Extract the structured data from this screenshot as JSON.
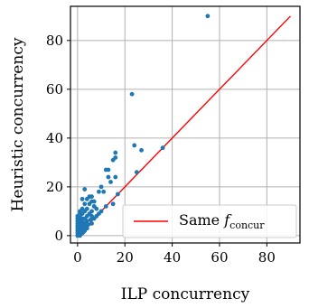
{
  "chart_data": {
    "type": "scatter",
    "xlabel": "ILP concurrency",
    "ylabel": "Heuristic concurrency",
    "xlim": [
      -3,
      94
    ],
    "ylim": [
      -3,
      94
    ],
    "xticks": [
      0,
      20,
      40,
      60,
      80
    ],
    "yticks": [
      0,
      20,
      40,
      60,
      80
    ],
    "grid": true,
    "legend": {
      "placement": "lower-right",
      "entries": [
        {
          "text": "Same ",
          "math": "f",
          "subscript": "concur"
        }
      ]
    },
    "colors": {
      "points": "#1f77b4",
      "reference_line": "#ff0000",
      "grid": "#b0b0b0"
    },
    "series": [
      {
        "kind": "scatter",
        "points": [
          [
            55,
            90
          ],
          [
            23,
            58
          ],
          [
            16,
            34
          ],
          [
            16,
            32
          ],
          [
            24,
            37
          ],
          [
            27,
            35
          ],
          [
            15,
            31
          ],
          [
            36,
            36
          ],
          [
            12,
            27
          ],
          [
            13,
            27
          ],
          [
            25,
            26
          ],
          [
            13,
            24
          ],
          [
            16,
            24
          ],
          [
            14,
            22
          ],
          [
            10,
            20
          ],
          [
            11,
            18
          ],
          [
            9,
            18
          ],
          [
            3,
            19
          ],
          [
            5,
            16
          ],
          [
            6,
            16
          ],
          [
            4,
            15
          ],
          [
            7,
            14
          ],
          [
            5,
            13
          ],
          [
            7,
            12
          ],
          [
            3,
            13
          ],
          [
            8,
            11
          ],
          [
            4,
            11
          ],
          [
            2,
            11
          ],
          [
            6,
            10
          ],
          [
            3,
            10
          ],
          [
            1,
            10
          ],
          [
            2,
            9
          ],
          [
            1,
            9
          ],
          [
            5,
            9
          ],
          [
            4,
            8
          ],
          [
            1,
            8
          ],
          [
            0,
            8
          ],
          [
            6,
            8
          ],
          [
            2,
            7
          ],
          [
            1,
            7
          ],
          [
            0,
            7
          ],
          [
            3,
            7
          ],
          [
            4,
            6
          ],
          [
            1,
            6
          ],
          [
            0,
            6
          ],
          [
            2,
            6
          ],
          [
            3,
            5
          ],
          [
            1,
            5
          ],
          [
            0,
            5
          ],
          [
            2,
            5
          ],
          [
            6,
            5
          ],
          [
            1,
            4
          ],
          [
            0,
            4
          ],
          [
            3,
            4
          ],
          [
            2,
            4
          ],
          [
            4,
            3
          ],
          [
            1,
            3
          ],
          [
            0,
            3
          ],
          [
            2,
            3
          ],
          [
            1,
            2
          ],
          [
            0,
            2
          ],
          [
            2,
            2
          ],
          [
            3,
            2
          ],
          [
            1,
            1
          ],
          [
            0,
            1
          ],
          [
            2,
            1
          ],
          [
            0,
            0
          ],
          [
            1,
            0
          ],
          [
            0.5,
            0.5
          ],
          [
            1.5,
            2.5
          ],
          [
            0.5,
            3.5
          ],
          [
            2.5,
            1.5
          ],
          [
            3.5,
            3.5
          ],
          [
            4.5,
            4.5
          ],
          [
            5.5,
            6.5
          ],
          [
            7,
            7
          ],
          [
            8,
            8
          ],
          [
            9,
            9
          ],
          [
            10,
            10
          ],
          [
            12,
            12
          ],
          [
            15,
            13
          ],
          [
            17,
            17
          ],
          [
            2,
            15
          ],
          [
            6,
            14
          ],
          [
            7,
            12
          ]
        ]
      },
      {
        "kind": "line",
        "x": [
          0,
          90
        ],
        "y": [
          0,
          90
        ]
      }
    ]
  }
}
